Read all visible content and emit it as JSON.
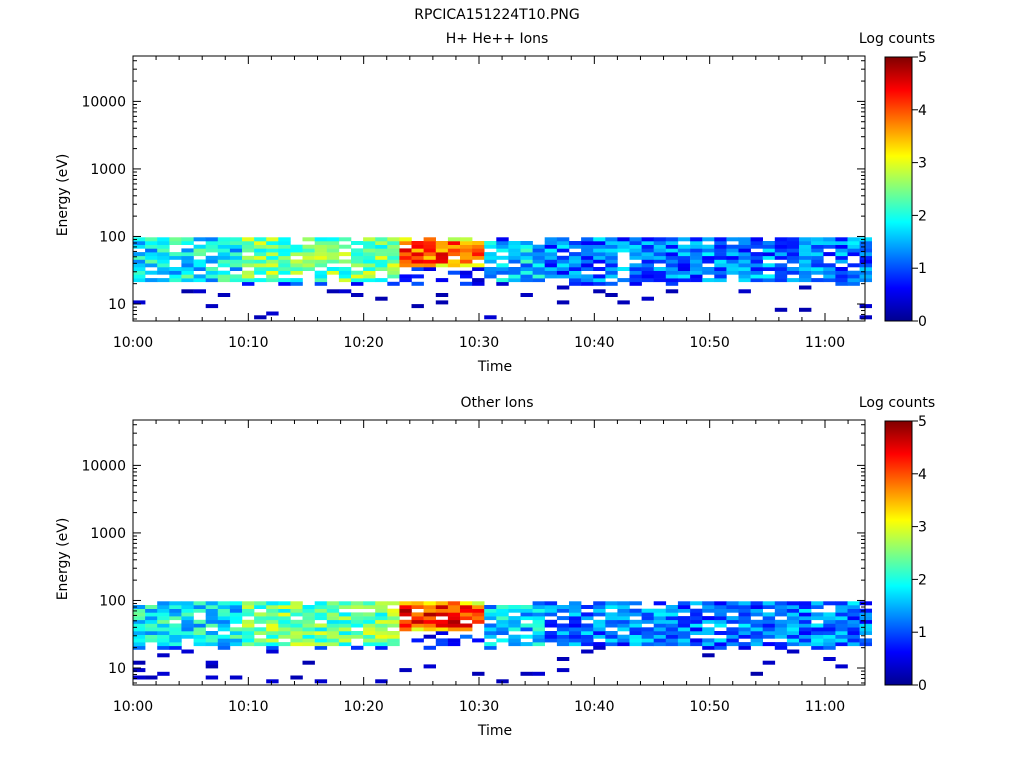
{
  "figure_title": "RPCICA151224T10.PNG",
  "colors": {
    "colormap": [
      "#00008f",
      "#0000ff",
      "#0080ff",
      "#00ffff",
      "#80ff80",
      "#ffff00",
      "#ff8000",
      "#ff0000",
      "#800000"
    ],
    "background": "#ffffff"
  },
  "chart_data": [
    {
      "type": "heatmap",
      "title": "H+ He++ Ions",
      "xlabel": "Time",
      "ylabel": "Energy (eV)",
      "x_ticks": [
        "10:00",
        "10:10",
        "10:20",
        "10:30",
        "10:40",
        "10:50",
        "11:00"
      ],
      "x_range_minutes": [
        0,
        63.5
      ],
      "y_ticks": [
        "10",
        "100",
        "1000",
        "10000"
      ],
      "y_scale": "log",
      "y_range": [
        5.6,
        47000
      ],
      "colorbar": {
        "label": "Log counts",
        "ticks": [
          "0",
          "1",
          "2",
          "3",
          "4",
          "5"
        ],
        "range": [
          0,
          5
        ]
      },
      "energy_band_eV": [
        20,
        95
      ],
      "regions": [
        {
          "from_min": 0,
          "to_min": 9,
          "lo_eV": 20,
          "hi_eV": 95,
          "log_counts": 1.8
        },
        {
          "from_min": 9,
          "to_min": 22.5,
          "lo_eV": 20,
          "hi_eV": 95,
          "log_counts": 2.4
        },
        {
          "from_min": 22.5,
          "to_min": 30,
          "lo_eV": 35,
          "hi_eV": 95,
          "log_counts": 4.0
        },
        {
          "from_min": 30,
          "to_min": 35,
          "lo_eV": 22,
          "hi_eV": 90,
          "log_counts": 1.6
        },
        {
          "from_min": 35,
          "to_min": 63,
          "lo_eV": 20,
          "hi_eV": 95,
          "log_counts": 1.2
        }
      ],
      "seed": 7
    },
    {
      "type": "heatmap",
      "title": "Other Ions",
      "xlabel": "Time",
      "ylabel": "Energy (eV)",
      "x_ticks": [
        "10:00",
        "10:10",
        "10:20",
        "10:30",
        "10:40",
        "10:50",
        "11:00"
      ],
      "x_range_minutes": [
        0,
        63.5
      ],
      "y_ticks": [
        "10",
        "100",
        "1000",
        "10000"
      ],
      "y_scale": "log",
      "y_range": [
        5.6,
        47000
      ],
      "colorbar": {
        "label": "Log counts",
        "ticks": [
          "0",
          "1",
          "2",
          "3",
          "4",
          "5"
        ],
        "range": [
          0,
          5
        ]
      },
      "energy_band_eV": [
        20,
        95
      ],
      "regions": [
        {
          "from_min": 0,
          "to_min": 9,
          "lo_eV": 20,
          "hi_eV": 95,
          "log_counts": 1.8
        },
        {
          "from_min": 9,
          "to_min": 22.5,
          "lo_eV": 20,
          "hi_eV": 95,
          "log_counts": 2.4
        },
        {
          "from_min": 22.5,
          "to_min": 30,
          "lo_eV": 35,
          "hi_eV": 95,
          "log_counts": 4.2
        },
        {
          "from_min": 30,
          "to_min": 35,
          "lo_eV": 22,
          "hi_eV": 90,
          "log_counts": 1.6
        },
        {
          "from_min": 35,
          "to_min": 63,
          "lo_eV": 20,
          "hi_eV": 95,
          "log_counts": 1.2
        }
      ],
      "seed": 19
    }
  ]
}
